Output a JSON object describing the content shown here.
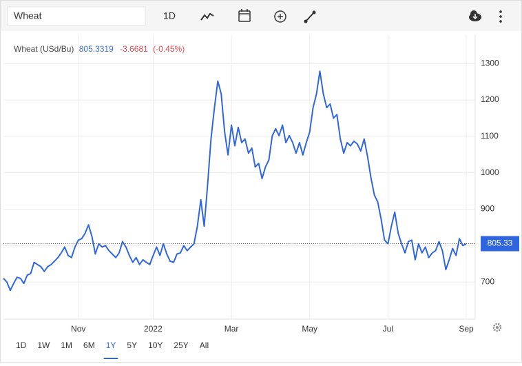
{
  "toolbar": {
    "search": "Wheat",
    "interval": "1D"
  },
  "ranges": [
    "1D",
    "1W",
    "1M",
    "6M",
    "1Y",
    "5Y",
    "10Y",
    "25Y",
    "All"
  ],
  "active_range": "1Y",
  "chart_data": {
    "type": "line",
    "categories": [
      null,
      null,
      null,
      null,
      null,
      null,
      null,
      null,
      null,
      null,
      null,
      null,
      null,
      null,
      null,
      null,
      null,
      null,
      null,
      null,
      null,
      null,
      "Nov",
      null,
      null,
      null,
      null,
      null,
      null,
      null,
      null,
      null,
      null,
      null,
      null,
      null,
      null,
      null,
      null,
      null,
      null,
      null,
      null,
      null,
      "2022",
      null,
      null,
      null,
      null,
      null,
      null,
      null,
      null,
      null,
      null,
      null,
      null,
      null,
      null,
      null,
      null,
      null,
      null,
      null,
      null,
      null,
      null,
      "Mar",
      null,
      null,
      null,
      null,
      null,
      null,
      null,
      null,
      null,
      null,
      null,
      null,
      null,
      null,
      null,
      null,
      null,
      null,
      null,
      null,
      null,
      null,
      "May",
      null,
      null,
      null,
      null,
      null,
      null,
      null,
      null,
      null,
      null,
      null,
      null,
      null,
      null,
      null,
      null,
      null,
      null,
      null,
      null,
      null,
      null,
      "Jul",
      null,
      null,
      null,
      null,
      null,
      null,
      null,
      null,
      null,
      null,
      null,
      null,
      null,
      null,
      null,
      null,
      null,
      null,
      null,
      null,
      null,
      null,
      "Sep"
    ],
    "series": [
      {
        "name": "Wheat (USd/Bu)",
        "color": "#2f66e0",
        "values": [
          710,
          700,
          677,
          696,
          713,
          710,
          696,
          719,
          723,
          754,
          748,
          742,
          729,
          742,
          748,
          757,
          767,
          780,
          796,
          773,
          767,
          796,
          815,
          819,
          834,
          857,
          825,
          777,
          805,
          796,
          800,
          786,
          777,
          767,
          780,
          811,
          796,
          773,
          754,
          767,
          748,
          761,
          754,
          748,
          773,
          796,
          773,
          805,
          777,
          757,
          754,
          777,
          780,
          800,
          786,
          796,
          805,
          853,
          926,
          853,
          968,
          1093,
          1179,
          1252,
          1217,
          1112,
          1049,
          1131,
          1074,
          1125,
          1083,
          1093,
          1054,
          1068,
          1016,
          1026,
          984,
          1016,
          1035,
          1102,
          1121,
          1102,
          1131,
          1083,
          1102,
          1083,
          1054,
          1083,
          1049,
          1083,
          1112,
          1179,
          1217,
          1279,
          1217,
          1179,
          1189,
          1150,
          1160,
          1093,
          1054,
          1083,
          1074,
          1087,
          1079,
          1060,
          1093,
          1045,
          987,
          939,
          920,
          872,
          815,
          805,
          853,
          892,
          834,
          805,
          780,
          811,
          815,
          761,
          805,
          780,
          796,
          767,
          780,
          786,
          811,
          786,
          734,
          761,
          792,
          773,
          819,
          800,
          805
        ]
      }
    ],
    "header": {
      "change": "-3.6681",
      "change_pct": "(-0.45%)"
    },
    "price_line": {
      "value": 805.3319,
      "label": "805.33",
      "color": "#2f66e0"
    },
    "ylim": [
      598,
      1380
    ],
    "yticks": [
      700,
      800,
      900,
      1000,
      1100,
      1200,
      1300
    ],
    "grid": true
  }
}
